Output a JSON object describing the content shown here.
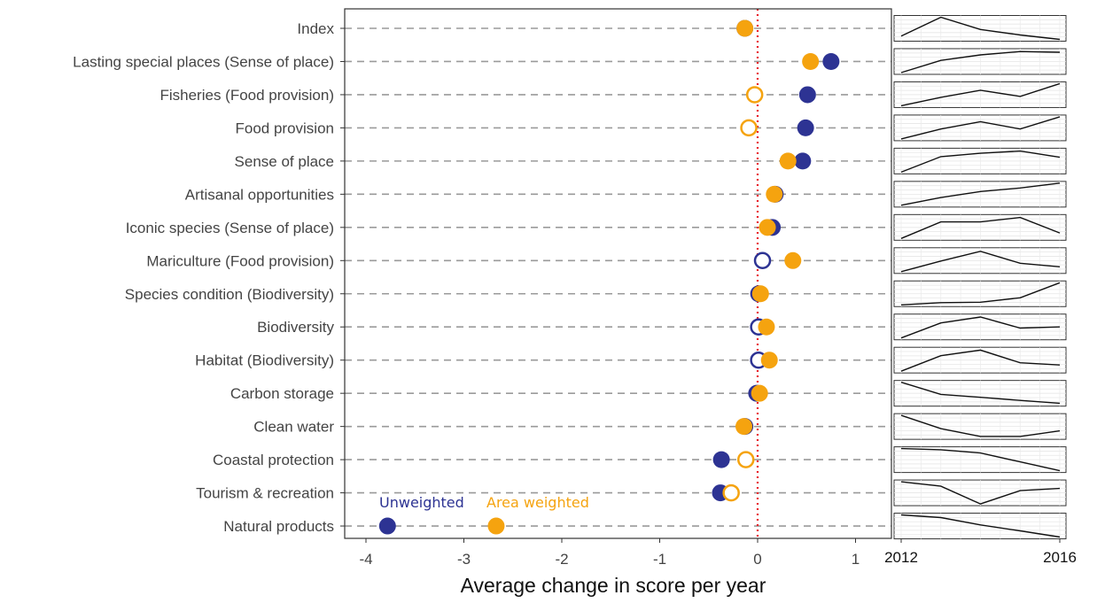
{
  "chart_data": {
    "type": "scatter",
    "xlabel": "Average change in score per year",
    "xlim": [
      -4.25,
      1.25
    ],
    "x_ticks": [
      -4,
      -3,
      -2,
      -1,
      0,
      1
    ],
    "reference_line_x": 0,
    "grid": "horizontal dashed lines per category",
    "legend_placement": "bottom-left inside plot",
    "categories": [
      "Index",
      "Lasting special places (Sense of place)",
      "Fisheries (Food provision)",
      "Food provision",
      "Sense of place",
      "Artisanal opportunities",
      "Iconic species (Sense of place)",
      "Mariculture (Food provision)",
      "Species condition (Biodiversity)",
      "Biodiversity",
      "Habitat (Biodiversity)",
      "Carbon storage",
      "Clean water",
      "Coastal protection",
      "Tourism & recreation",
      "Natural products"
    ],
    "series": [
      {
        "name": "Unweighted",
        "color": "#2d3393",
        "values": [
          -0.13,
          0.75,
          0.51,
          0.49,
          0.46,
          0.18,
          0.15,
          0.05,
          0.01,
          0.01,
          0.01,
          -0.01,
          -0.13,
          -0.37,
          -0.38,
          -3.78
        ],
        "filled": [
          true,
          true,
          true,
          true,
          true,
          true,
          true,
          false,
          true,
          false,
          false,
          true,
          true,
          true,
          true,
          true
        ]
      },
      {
        "name": "Area weighted",
        "color": "#f5a30f",
        "values": [
          -0.13,
          0.54,
          -0.03,
          -0.09,
          0.31,
          0.17,
          0.1,
          0.36,
          0.03,
          0.09,
          0.12,
          0.02,
          -0.14,
          -0.12,
          -0.27,
          -2.67
        ],
        "filled": [
          true,
          true,
          false,
          false,
          true,
          true,
          true,
          true,
          true,
          true,
          true,
          true,
          true,
          false,
          false,
          true
        ]
      }
    ],
    "sparklines": {
      "years": [
        "2012",
        "2016"
      ],
      "series": [
        [
          0.85,
          0.0,
          0.55,
          0.8,
          1.0
        ],
        [
          1.0,
          0.45,
          0.2,
          0.05,
          0.08
        ],
        [
          1.0,
          0.62,
          0.3,
          0.58,
          0.0
        ],
        [
          1.0,
          0.55,
          0.22,
          0.55,
          0.0
        ],
        [
          1.0,
          0.3,
          0.15,
          0.05,
          0.33
        ],
        [
          1.0,
          0.65,
          0.38,
          0.22,
          0.0
        ],
        [
          1.0,
          0.25,
          0.25,
          0.05,
          0.75
        ],
        [
          1.0,
          0.52,
          0.08,
          0.62,
          0.78
        ],
        [
          1.0,
          0.9,
          0.88,
          0.68,
          0.0
        ],
        [
          1.0,
          0.32,
          0.05,
          0.55,
          0.5
        ],
        [
          1.0,
          0.3,
          0.05,
          0.62,
          0.72
        ],
        [
          0.0,
          0.55,
          0.68,
          0.82,
          0.95
        ],
        [
          0.0,
          0.6,
          0.95,
          0.95,
          0.7
        ],
        [
          0.0,
          0.05,
          0.2,
          0.6,
          1.0
        ],
        [
          0.0,
          0.2,
          1.0,
          0.4,
          0.3
        ],
        [
          0.0,
          0.12,
          0.45,
          0.72,
          1.0
        ]
      ]
    }
  }
}
